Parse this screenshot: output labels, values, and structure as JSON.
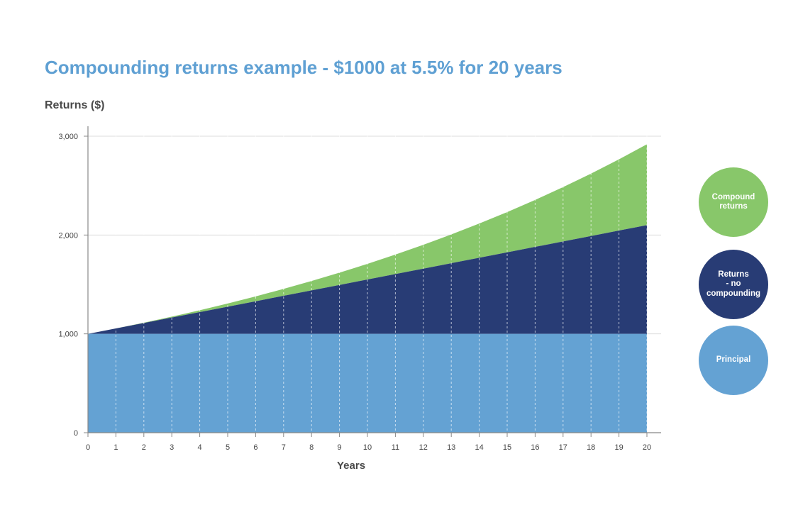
{
  "chart_data": {
    "type": "area",
    "title": "Compounding returns example - $1000 at 5.5% for 20 years",
    "xlabel": "Years",
    "ylabel": "Returns ($)",
    "x": [
      0,
      1,
      2,
      3,
      4,
      5,
      6,
      7,
      8,
      9,
      10,
      11,
      12,
      13,
      14,
      15,
      16,
      17,
      18,
      19,
      20
    ],
    "ylim": [
      0,
      3000
    ],
    "yticks": [
      0,
      1000,
      2000,
      3000
    ],
    "ytick_labels": [
      "0",
      "1,000",
      "2,000",
      "3,000"
    ],
    "stacked": true,
    "grid": {
      "x": "dashed",
      "y": "solid"
    },
    "legend_position": "right",
    "series": [
      {
        "name": "Principal",
        "color": "#64a2d3",
        "values": [
          1000,
          1000,
          1000,
          1000,
          1000,
          1000,
          1000,
          1000,
          1000,
          1000,
          1000,
          1000,
          1000,
          1000,
          1000,
          1000,
          1000,
          1000,
          1000,
          1000,
          1000
        ]
      },
      {
        "name": "Returns\n- no compounding",
        "color": "#283c75",
        "values": [
          1000,
          1055,
          1110,
          1165,
          1220,
          1275,
          1330,
          1385,
          1440,
          1495,
          1550,
          1605,
          1660,
          1715,
          1770,
          1825,
          1880,
          1935,
          1990,
          2045,
          2100
        ]
      },
      {
        "name": "Compound\nreturns",
        "color": "#88c76a",
        "values": [
          1000,
          1055,
          1113,
          1174,
          1239,
          1307,
          1379,
          1455,
          1535,
          1619,
          1708,
          1802,
          1901,
          2006,
          2116,
          2232,
          2355,
          2485,
          2621,
          2766,
          2918
        ]
      }
    ]
  }
}
